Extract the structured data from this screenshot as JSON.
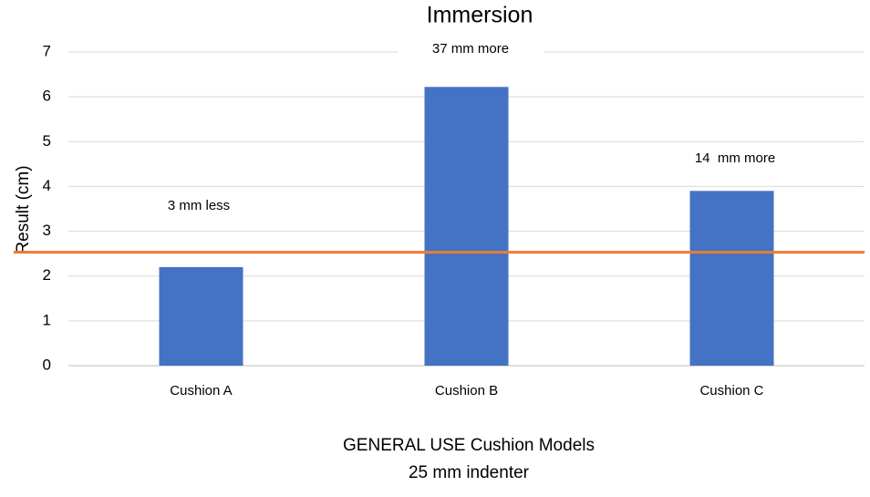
{
  "chart_data": {
    "type": "bar",
    "title": "Immersion",
    "ylabel": "Result (cm)",
    "xlabel": [
      "GENERAL USE Cushion Models",
      "25 mm indenter"
    ],
    "categories": [
      "Cushion A",
      "Cushion B",
      "Cushion C"
    ],
    "values": [
      2.2,
      6.22,
      3.9
    ],
    "color": "#4472c4",
    "annotations": [
      "3 mm less",
      "37 mm more",
      "14  mm more"
    ],
    "reference_line": {
      "value": 2.53,
      "color": "#ed7d31"
    },
    "ylim": [
      0,
      7
    ],
    "yticks": [
      0,
      1,
      2,
      3,
      4,
      5,
      6,
      7
    ],
    "grid": true
  }
}
